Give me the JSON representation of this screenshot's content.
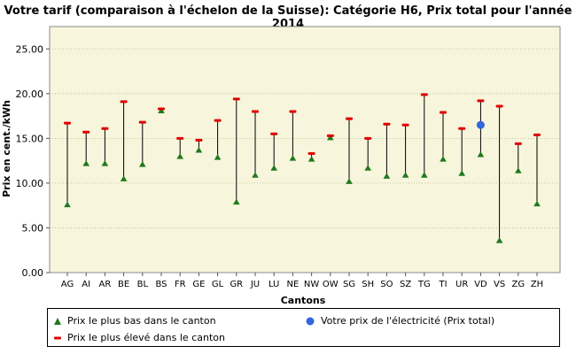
{
  "chart_data": {
    "type": "scatter",
    "title": "Votre tarif (comparaison à l'échelon de la Suisse): Catégorie H6, Prix total pour l'année 2014",
    "xlabel": "Cantons",
    "ylabel": "Prix en cent./kWh",
    "ylim": [
      0,
      27.5
    ],
    "yticks": [
      "0.00",
      "5.00",
      "10.00",
      "15.00",
      "20.00",
      "25.00"
    ],
    "grid": true,
    "legend_position": "bottom",
    "categories": [
      "AG",
      "AI",
      "AR",
      "BE",
      "BL",
      "BS",
      "FR",
      "GE",
      "GL",
      "GR",
      "JU",
      "LU",
      "NE",
      "NW",
      "OW",
      "SG",
      "SH",
      "SO",
      "SZ",
      "TG",
      "TI",
      "UR",
      "VD",
      "VS",
      "ZG",
      "ZH"
    ],
    "series": [
      {
        "name": "Prix le plus bas dans le canton",
        "color": "#1e7a1e",
        "marker": "triangle",
        "values": [
          7.6,
          12.2,
          12.2,
          10.5,
          12.1,
          18.1,
          13.0,
          13.7,
          12.9,
          7.9,
          10.9,
          11.7,
          12.8,
          12.7,
          15.1,
          10.2,
          11.7,
          10.8,
          10.9,
          10.9,
          12.7,
          11.1,
          13.2,
          3.6,
          11.4,
          7.7
        ]
      },
      {
        "name": "Prix le plus élevé dans le canton",
        "color": "#e00000",
        "marker": "dash",
        "values": [
          16.7,
          15.7,
          16.1,
          19.1,
          16.8,
          18.3,
          15.0,
          14.8,
          17.0,
          19.4,
          18.0,
          15.5,
          18.0,
          13.3,
          15.3,
          17.2,
          15.0,
          16.6,
          16.5,
          19.9,
          17.9,
          16.1,
          19.2,
          18.6,
          14.4,
          15.4
        ]
      },
      {
        "name": "Votre prix de l'électricité (Prix total)",
        "color": "#3366dd",
        "marker": "circle",
        "points": [
          {
            "x": "VD",
            "y": 16.5
          }
        ]
      }
    ]
  }
}
